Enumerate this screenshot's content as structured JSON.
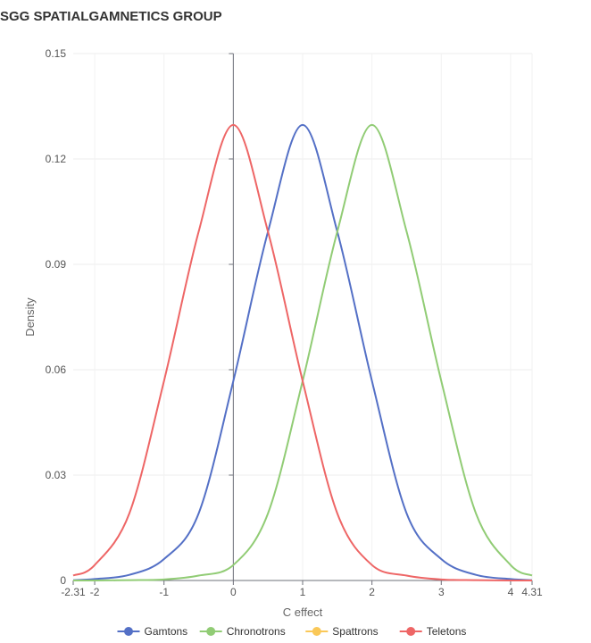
{
  "chart_data": {
    "type": "line",
    "title": "SGG SPATIALGAMNETICS GROUP",
    "xlabel": "C effect",
    "ylabel": "Density",
    "xlim": [
      -2.31,
      4.31
    ],
    "ylim": [
      0,
      0.15
    ],
    "x_ticks": [
      -2.31,
      -2,
      -1,
      0,
      1,
      2,
      3,
      4,
      4.31
    ],
    "x_tick_labels": [
      "-2.31",
      "-2",
      "-1",
      "0",
      "1",
      "2",
      "3",
      "4",
      "4.31"
    ],
    "y_ticks": [
      0,
      0.03,
      0.06,
      0.09,
      0.12,
      0.15
    ],
    "y_tick_labels": [
      "0",
      "0.03",
      "0.06",
      "0.09",
      "0.12",
      "0.15"
    ],
    "grid": true,
    "legend_position": "bottom-center",
    "series": [
      {
        "name": "Gamtons",
        "color": "#5470c6",
        "x": [
          -2.31,
          -2,
          -1.5,
          -1,
          -0.5,
          0,
          0.5,
          1,
          1.5,
          2,
          2.5,
          3,
          3.5,
          4,
          4.31
        ],
        "y": [
          0.0001,
          0.0004,
          0.0016,
          0.0061,
          0.0191,
          0.0568,
          0.0993,
          0.1297,
          0.0993,
          0.0568,
          0.0191,
          0.0061,
          0.0016,
          0.0004,
          0.0001
        ]
      },
      {
        "name": "Chronotrons",
        "color": "#91cc75",
        "x": [
          -2.31,
          -2,
          -1.5,
          -1,
          -0.5,
          0,
          0.5,
          1,
          1.5,
          2,
          2.5,
          3,
          3.5,
          4,
          4.31
        ],
        "y": [
          0.0,
          0.0,
          0.0001,
          0.0003,
          0.0014,
          0.0044,
          0.0191,
          0.0568,
          0.0993,
          0.1297,
          0.0993,
          0.0568,
          0.0191,
          0.0044,
          0.0014
        ]
      },
      {
        "name": "Spattrons",
        "color": "#fac858",
        "x": [],
        "y": []
      },
      {
        "name": "Teletons",
        "color": "#ee6666",
        "x": [
          -2.31,
          -2,
          -1.5,
          -1,
          -0.5,
          0,
          0.5,
          1,
          1.5,
          2,
          2.5,
          3,
          3.5,
          4,
          4.31
        ],
        "y": [
          0.0014,
          0.0044,
          0.0191,
          0.0568,
          0.0993,
          0.1297,
          0.0993,
          0.0568,
          0.0191,
          0.0044,
          0.0014,
          0.0003,
          0.0001,
          0.0,
          0.0
        ]
      }
    ]
  }
}
